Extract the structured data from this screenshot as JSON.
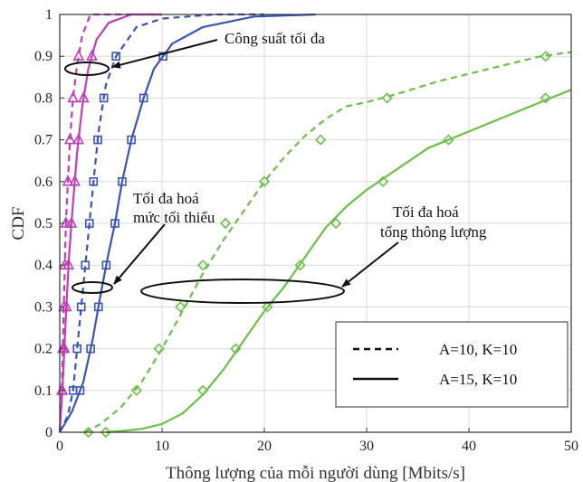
{
  "colors": {
    "magenta": "#c13dba",
    "blue": "#3a54b8",
    "green": "#6cc04a",
    "grid": "#d9d9d9",
    "axis": "#333333"
  },
  "chart_data": {
    "type": "line",
    "xlabel": "Thông lượng của mỗi người dùng [Mbits/s]",
    "ylabel": "CDF",
    "xlim": [
      0,
      50
    ],
    "ylim": [
      0,
      1
    ],
    "xticks": [
      0,
      10,
      20,
      30,
      40,
      50
    ],
    "yticks": [
      0,
      0.1,
      0.2,
      0.3,
      0.4,
      0.5,
      0.6,
      0.7,
      0.8,
      0.9,
      1
    ],
    "grid": true,
    "legend_position": "bottom-right",
    "legend": [
      {
        "label": "A=10, K=10",
        "style": "dashed"
      },
      {
        "label": "A=15, K=10",
        "style": "solid"
      }
    ],
    "series": [
      {
        "group": "max-power",
        "color": "magenta",
        "style": "dashed",
        "marker": "triangle",
        "x": [
          0,
          0.2,
          0.4,
          0.6,
          0.8,
          1.0,
          1.3,
          1.7,
          2.2,
          3,
          5,
          10
        ],
        "y": [
          0,
          0.1,
          0.3,
          0.5,
          0.6,
          0.7,
          0.8,
          0.88,
          0.95,
          1,
          1,
          1
        ],
        "marker_y": [
          0.1,
          0.2,
          0.3,
          0.4,
          0.5,
          0.6,
          0.7,
          0.8,
          0.9
        ]
      },
      {
        "group": "max-power",
        "color": "magenta",
        "style": "solid",
        "marker": "triangle",
        "x": [
          0,
          0.3,
          0.6,
          0.9,
          1.3,
          1.7,
          2.2,
          2.8,
          3.6,
          4.8,
          7,
          10
        ],
        "y": [
          0,
          0.12,
          0.28,
          0.42,
          0.55,
          0.67,
          0.78,
          0.87,
          0.94,
          0.98,
          1,
          1
        ],
        "marker_y": [
          0.1,
          0.2,
          0.3,
          0.4,
          0.5,
          0.6,
          0.7,
          0.8,
          0.9
        ]
      },
      {
        "group": "max-min",
        "color": "blue",
        "style": "dashed",
        "marker": "square",
        "x": [
          0,
          0.8,
          1.3,
          1.7,
          2.1,
          2.5,
          2.9,
          3.3,
          3.8,
          4.5,
          5.5,
          7.5,
          10,
          15,
          20
        ],
        "y": [
          0,
          0.04,
          0.1,
          0.2,
          0.3,
          0.4,
          0.5,
          0.6,
          0.72,
          0.83,
          0.9,
          0.97,
          0.99,
          1,
          1
        ],
        "marker_y": [
          0.1,
          0.2,
          0.3,
          0.4,
          0.5,
          0.6,
          0.7,
          0.8,
          0.9
        ]
      },
      {
        "group": "max-min",
        "color": "blue",
        "style": "solid",
        "marker": "square",
        "x": [
          0,
          1.2,
          2.3,
          3.2,
          4.0,
          4.7,
          5.4,
          6.1,
          7.0,
          8.2,
          9.2,
          11,
          14,
          19,
          25
        ],
        "y": [
          0,
          0.05,
          0.12,
          0.22,
          0.33,
          0.42,
          0.5,
          0.6,
          0.7,
          0.8,
          0.87,
          0.93,
          0.97,
          0.995,
          1
        ],
        "marker_y": [
          0.1,
          0.2,
          0.3,
          0.4,
          0.5,
          0.6,
          0.7,
          0.8,
          0.9
        ]
      },
      {
        "group": "sum-rate",
        "color": "green",
        "style": "dashed",
        "marker": "diamond",
        "x": [
          2.5,
          4,
          6,
          8,
          10,
          12,
          14,
          16,
          18,
          20,
          22,
          24,
          26,
          28,
          30,
          33,
          37,
          42,
          47,
          50
        ],
        "y": [
          0,
          0.02,
          0.06,
          0.12,
          0.2,
          0.29,
          0.38,
          0.46,
          0.53,
          0.6,
          0.66,
          0.71,
          0.75,
          0.78,
          0.79,
          0.81,
          0.84,
          0.87,
          0.9,
          0.91
        ],
        "markers": [
          [
            2.8,
            0
          ],
          [
            7.5,
            0.1
          ],
          [
            9.7,
            0.2
          ],
          [
            11.8,
            0.3
          ],
          [
            14,
            0.4
          ],
          [
            16.2,
            0.5
          ],
          [
            20,
            0.6
          ],
          [
            25.5,
            0.7
          ],
          [
            32,
            0.8
          ],
          [
            47.5,
            0.9
          ]
        ]
      },
      {
        "group": "sum-rate",
        "color": "green",
        "style": "solid",
        "marker": "diamond",
        "x": [
          4.5,
          6,
          8,
          10,
          12,
          14,
          16,
          18,
          20,
          22,
          24,
          26,
          28,
          30,
          33,
          36,
          40,
          44,
          48,
          50
        ],
        "y": [
          0,
          0.003,
          0.008,
          0.02,
          0.045,
          0.09,
          0.15,
          0.22,
          0.29,
          0.35,
          0.42,
          0.49,
          0.54,
          0.58,
          0.63,
          0.68,
          0.72,
          0.76,
          0.8,
          0.82
        ],
        "markers": [
          [
            4.5,
            0
          ],
          [
            14,
            0.1
          ],
          [
            17.2,
            0.2
          ],
          [
            20.3,
            0.3
          ],
          [
            23.5,
            0.4
          ],
          [
            27,
            0.5
          ],
          [
            31.6,
            0.6
          ],
          [
            38,
            0.7
          ],
          [
            47.5,
            0.8
          ]
        ]
      }
    ],
    "annotations": [
      {
        "text": "Công suất tối đa"
      },
      {
        "text": "Tối đa hoá"
      },
      {
        "text": "mức tối thiểu"
      },
      {
        "text": "Tối đa hoá"
      },
      {
        "text": "tổng thông lượng"
      }
    ]
  }
}
